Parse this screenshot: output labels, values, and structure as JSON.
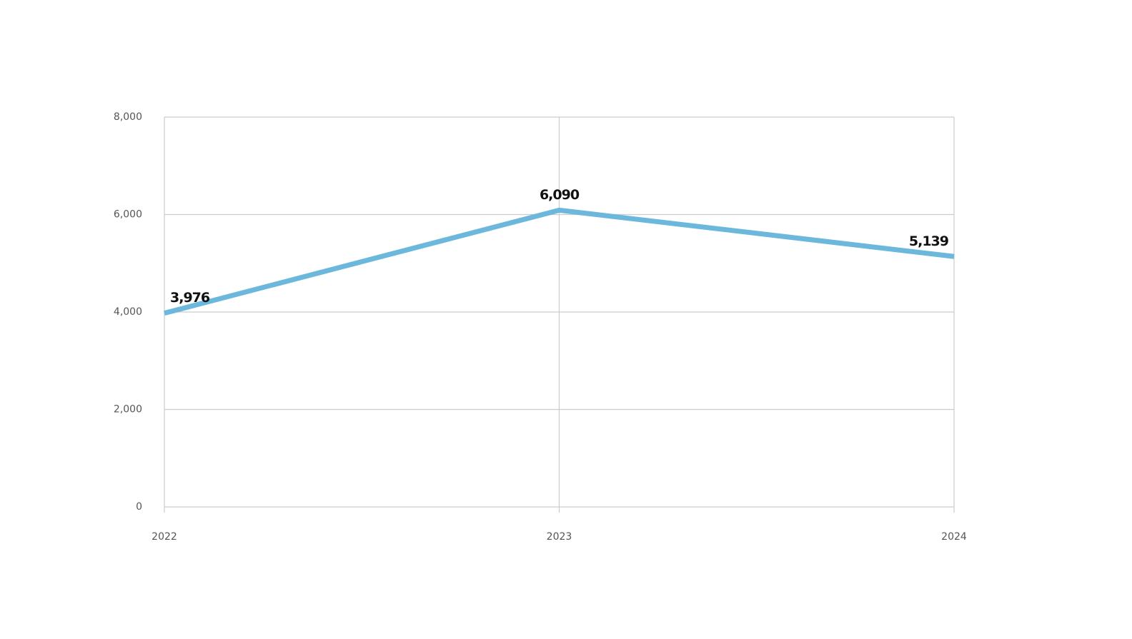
{
  "chart_data": {
    "type": "line",
    "categories": [
      "2022",
      "2023",
      "2024"
    ],
    "values": [
      3976,
      6090,
      5139
    ],
    "value_labels": [
      "3,976",
      "6,090",
      "5,139"
    ],
    "color": "#6bb8dc",
    "ylim": [
      0,
      8000
    ],
    "yticks": [
      0,
      {
        "value": 2000,
        "label": "2,000"
      },
      {
        "value": 4000,
        "label": "4,000"
      },
      {
        "value": 6000,
        "label": "6,000"
      },
      {
        "value": 8000,
        "label": "8,000"
      }
    ],
    "grid": true
  }
}
